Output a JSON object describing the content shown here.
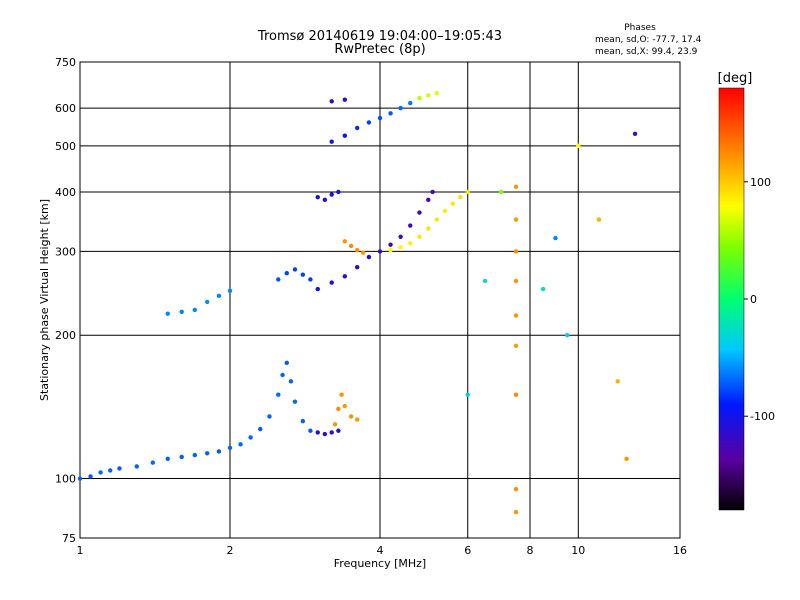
{
  "chart_data": {
    "type": "scatter",
    "title": "Tromsø 20140619 19:04:00–19:05:43",
    "subtitle": "RwPretec (8p)",
    "xlabel": "Frequency [MHz]",
    "ylabel": "Stationary phase Virtual Height [km]",
    "x_scale": "log",
    "y_scale": "log",
    "xlim": [
      1,
      16
    ],
    "ylim": [
      75,
      750
    ],
    "x_ticks": [
      1,
      2,
      4,
      6,
      8,
      10,
      16
    ],
    "x_tick_labels": [
      "1",
      "2",
      "4",
      "6",
      "8",
      "10",
      "16"
    ],
    "y_ticks": [
      75,
      100,
      200,
      300,
      400,
      500,
      600,
      750
    ],
    "y_tick_labels": [
      "75",
      "100",
      "200",
      "300",
      "400",
      "500",
      "600",
      "750"
    ],
    "grid": true,
    "stats": {
      "title": "Phases",
      "line_o": "mean, sd,O: -77.7, 17.4",
      "line_x": "mean, sd,X:  99.4, 23.9"
    },
    "colorbar": {
      "label": "[deg]",
      "range": [
        -180,
        180
      ],
      "ticks": [
        100,
        0,
        -100
      ],
      "tick_labels": [
        "100",
        "0",
        "-100"
      ]
    },
    "series": [
      {
        "points": [
          [
            1.0,
            100,
            -70
          ],
          [
            1.05,
            101,
            -72
          ],
          [
            1.1,
            103,
            -68
          ],
          [
            1.15,
            104,
            -70
          ],
          [
            1.2,
            105,
            -72
          ],
          [
            1.3,
            106,
            -70
          ],
          [
            1.4,
            108,
            -68
          ],
          [
            1.5,
            110,
            -70
          ],
          [
            1.6,
            111,
            -72
          ],
          [
            1.7,
            112,
            -70
          ],
          [
            1.8,
            113,
            -70
          ],
          [
            1.9,
            114,
            -72
          ],
          [
            2.0,
            116,
            -70
          ],
          [
            2.1,
            118,
            -68
          ],
          [
            2.2,
            122,
            -70
          ],
          [
            2.3,
            127,
            -72
          ],
          [
            2.4,
            135,
            -70
          ],
          [
            2.5,
            150,
            -68
          ],
          [
            2.55,
            165,
            -70
          ],
          [
            2.6,
            175,
            -72
          ],
          [
            2.65,
            160,
            -70
          ],
          [
            2.7,
            145,
            -68
          ],
          [
            2.8,
            132,
            -70
          ],
          [
            2.9,
            126,
            -72
          ]
        ]
      },
      {
        "points": [
          [
            3.0,
            125,
            -110
          ],
          [
            3.1,
            124,
            -112
          ],
          [
            3.2,
            125,
            -110
          ],
          [
            3.3,
            126,
            -108
          ]
        ]
      },
      {
        "points": [
          [
            3.25,
            130,
            120
          ],
          [
            3.3,
            140,
            125
          ],
          [
            3.35,
            150,
            120
          ],
          [
            3.4,
            142,
            118
          ],
          [
            3.5,
            135,
            122
          ],
          [
            3.6,
            133,
            120
          ]
        ]
      },
      {
        "points": [
          [
            1.5,
            222,
            -60
          ],
          [
            1.6,
            224,
            -62
          ],
          [
            1.7,
            226,
            -60
          ],
          [
            1.8,
            235,
            -58
          ],
          [
            1.9,
            242,
            -60
          ],
          [
            2.0,
            248,
            -60
          ]
        ]
      },
      {
        "points": [
          [
            2.5,
            262,
            -75
          ],
          [
            2.6,
            270,
            -78
          ],
          [
            2.7,
            275,
            -80
          ],
          [
            2.8,
            268,
            -78
          ],
          [
            2.9,
            262,
            -80
          ]
        ]
      },
      {
        "points": [
          [
            3.0,
            250,
            -95
          ],
          [
            3.2,
            258,
            -100
          ],
          [
            3.4,
            266,
            -105
          ],
          [
            3.6,
            278,
            -110
          ],
          [
            3.8,
            292,
            -115
          ],
          [
            4.0,
            300,
            -118
          ],
          [
            4.2,
            310,
            -120
          ],
          [
            4.4,
            322,
            -122
          ],
          [
            4.6,
            340,
            -125
          ],
          [
            4.8,
            362,
            -125
          ],
          [
            5.0,
            385,
            -128
          ],
          [
            5.1,
            400,
            -128
          ]
        ]
      },
      {
        "points": [
          [
            4.2,
            302,
            80
          ],
          [
            4.4,
            306,
            82
          ],
          [
            4.6,
            312,
            85
          ],
          [
            4.8,
            322,
            88
          ],
          [
            5.0,
            335,
            90
          ],
          [
            5.2,
            350,
            88
          ],
          [
            5.4,
            365,
            85
          ],
          [
            5.6,
            378,
            88
          ],
          [
            5.8,
            390,
            90
          ],
          [
            6.0,
            400,
            92
          ]
        ]
      },
      {
        "points": [
          [
            3.4,
            315,
            120
          ],
          [
            3.5,
            308,
            125
          ],
          [
            3.6,
            302,
            122
          ],
          [
            3.7,
            298,
            118
          ]
        ]
      },
      {
        "points": [
          [
            3.0,
            390,
            -100
          ],
          [
            3.1,
            385,
            -102
          ],
          [
            3.2,
            395,
            -105
          ],
          [
            3.3,
            400,
            -102
          ]
        ]
      },
      {
        "points": [
          [
            3.2,
            510,
            -95
          ],
          [
            3.4,
            525,
            -90
          ],
          [
            3.6,
            545,
            -85
          ],
          [
            3.8,
            560,
            -80
          ],
          [
            4.0,
            572,
            -75
          ],
          [
            4.2,
            585,
            -72
          ],
          [
            4.4,
            600,
            -70
          ],
          [
            4.6,
            615,
            -65
          ]
        ]
      },
      {
        "points": [
          [
            4.8,
            630,
            60
          ],
          [
            5.0,
            638,
            65
          ],
          [
            5.2,
            645,
            70
          ]
        ]
      },
      {
        "points": [
          [
            3.2,
            620,
            -110
          ],
          [
            3.4,
            625,
            -115
          ]
        ]
      },
      {
        "points": [
          [
            7.5,
            410,
            120
          ],
          [
            7.5,
            350,
            118
          ],
          [
            7.5,
            300,
            125
          ],
          [
            7.5,
            260,
            122
          ],
          [
            7.5,
            220,
            120
          ],
          [
            7.5,
            190,
            118
          ],
          [
            7.5,
            150,
            125
          ],
          [
            7.5,
            95,
            122
          ],
          [
            7.5,
            85,
            120
          ]
        ]
      },
      {
        "points": [
          [
            6.0,
            150,
            -40
          ],
          [
            6.5,
            260,
            -30
          ],
          [
            7.0,
            400,
            40
          ],
          [
            8.5,
            250,
            -20
          ],
          [
            9.0,
            320,
            -60
          ],
          [
            9.5,
            200,
            -40
          ],
          [
            10.0,
            500,
            80
          ],
          [
            11.0,
            350,
            110
          ],
          [
            12.0,
            160,
            110
          ],
          [
            12.5,
            110,
            120
          ],
          [
            13.0,
            530,
            -120
          ]
        ]
      }
    ]
  }
}
